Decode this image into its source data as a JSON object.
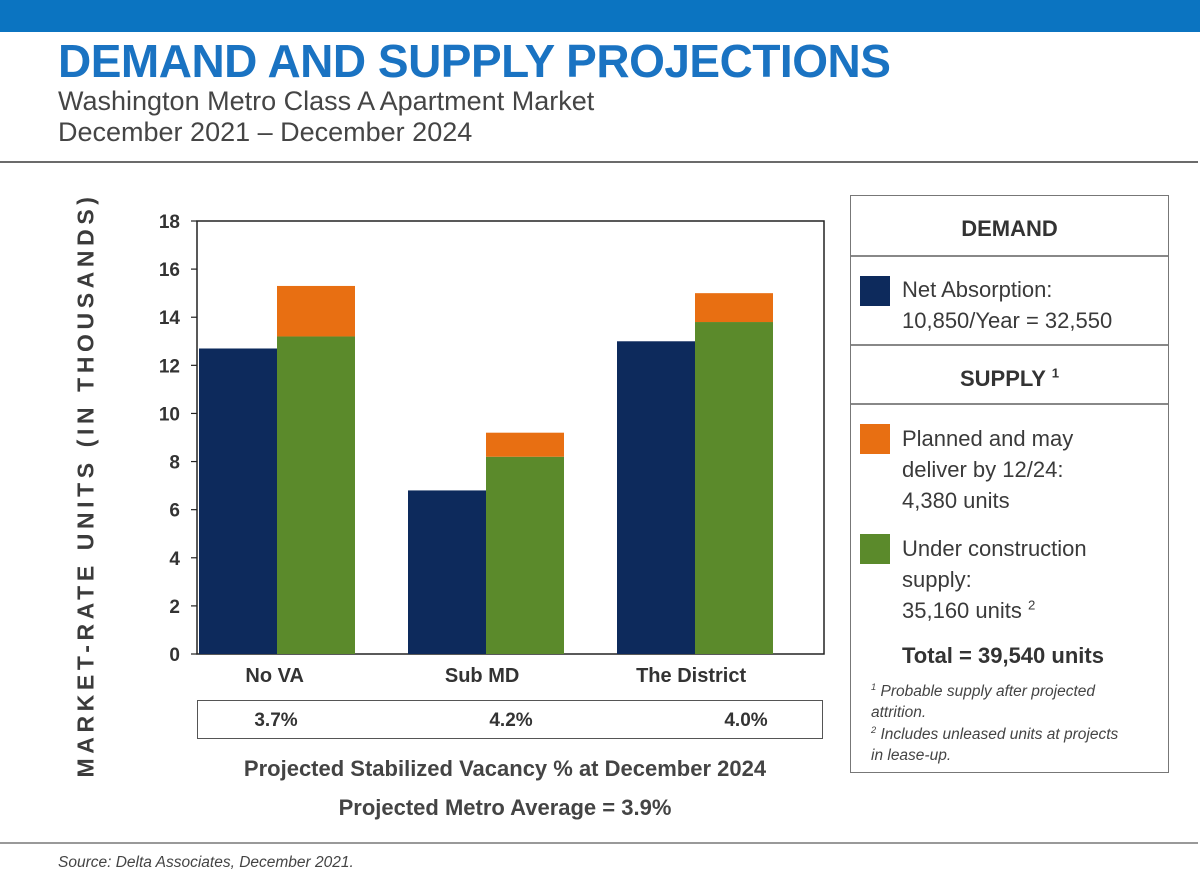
{
  "header": {
    "title": "DEMAND AND SUPPLY PROJECTIONS",
    "subtitle_line1": "Washington Metro Class A Apartment Market",
    "subtitle_line2": "December 2021 – December 2024"
  },
  "colors": {
    "top_bar": "#0b74c1",
    "title": "#1a73c2",
    "net_absorption": "#0d2a5c",
    "under_construction": "#5b8a2b",
    "planned": "#e86f12"
  },
  "chart_data": {
    "type": "bar",
    "stacked_supply": true,
    "ylabel": "MARKET-RATE UNITS (IN THOUSANDS)",
    "ylim": [
      0,
      18
    ],
    "yticks": [
      "0",
      "2",
      "4",
      "6",
      "8",
      "10",
      "12",
      "14",
      "16",
      "18"
    ],
    "categories": [
      "No VA",
      "Sub MD",
      "The District"
    ],
    "series": [
      {
        "name": "Net Absorption",
        "stack": "demand",
        "values": [
          12.7,
          6.8,
          13.0
        ]
      },
      {
        "name": "Under construction supply",
        "stack": "supply",
        "values": [
          13.2,
          8.2,
          13.8
        ]
      },
      {
        "name": "Planned and may deliver by 12/24",
        "stack": "supply",
        "values": [
          2.1,
          1.0,
          1.2
        ]
      }
    ],
    "grid": false
  },
  "vacancy": {
    "values": [
      "3.7%",
      "4.2%",
      "4.0%"
    ],
    "caption": "Projected Stabilized Vacancy % at December 2024",
    "metro_average": "Projected Metro Average = 3.9%"
  },
  "legend": {
    "demand_header": "DEMAND",
    "net_absorption_line1": "Net Absorption:",
    "net_absorption_line2": "10,850/Year = 32,550",
    "supply_header": "SUPPLY",
    "supply_header_note": "1",
    "planned_line1": "Planned and may",
    "planned_line2": "deliver by 12/24:",
    "planned_line3": "4,380 units",
    "under_construction_line1": "Under construction",
    "under_construction_line2": "supply:",
    "under_construction_line3": "35,160 units",
    "under_construction_note": "2",
    "total": "Total = 39,540 units",
    "footnote1_mark": "1",
    "footnote1_line1": "Probable supply after projected",
    "footnote1_line2": "attrition.",
    "footnote2_mark": "2",
    "footnote2_line1": "Includes unleased units at projects",
    "footnote2_line2": "in lease-up."
  },
  "source": "Source: Delta Associates, December 2021."
}
